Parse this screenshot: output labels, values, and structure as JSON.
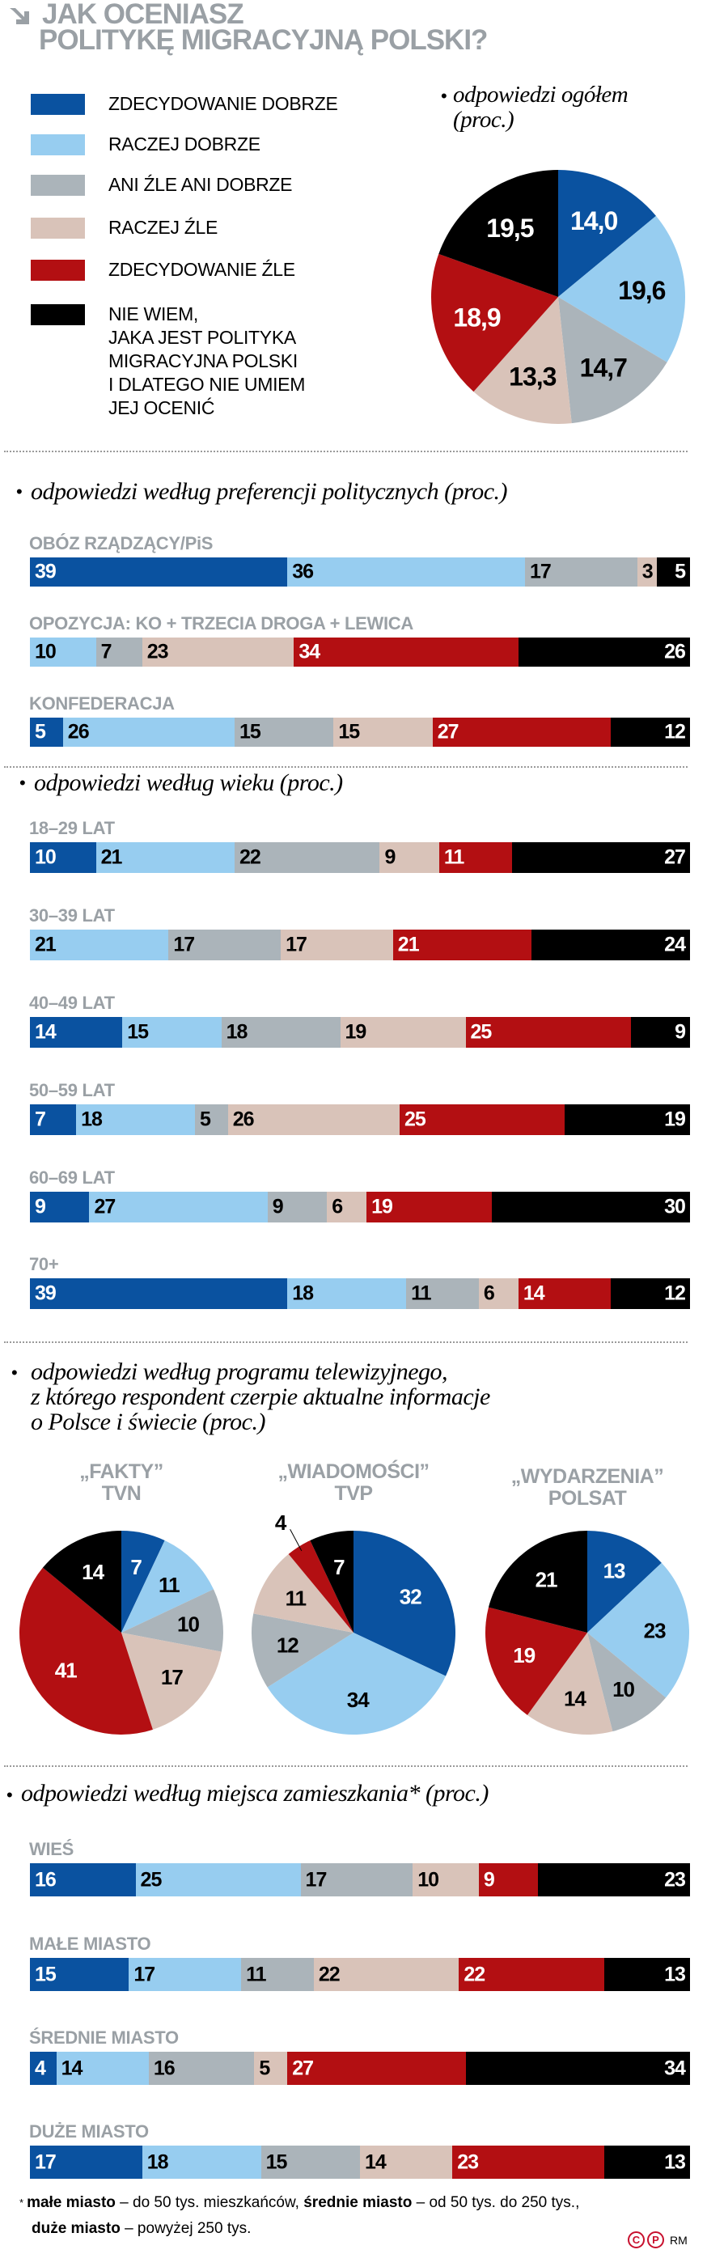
{
  "title": {
    "line1": "JAK OCENIASZ",
    "line2": "POLITYKĘ MIGRACYJNĄ POLSKI?"
  },
  "colors": {
    "zdecydowanie_dobrze": "#0a52a0",
    "raczej_dobrze": "#97cdf0",
    "ani_zle_ani_dobrze": "#abb4ba",
    "raczej_zle": "#d9c3b9",
    "zdecydowanie_zle": "#b30f12",
    "nie_wiem": "#000000",
    "heading_gray": "#9aa0a5"
  },
  "legend": [
    {
      "label": "ZDECYDOWANIE DOBRZE"
    },
    {
      "label": "RACZEJ DOBRZE"
    },
    {
      "label": "ANI ŹLE ANI DOBRZE"
    },
    {
      "label": "RACZEJ ŹLE"
    },
    {
      "label": "ZDECYDOWANIE ŹLE"
    },
    {
      "label": "NIE WIEM,\nJAKA JEST POLITYKA\nMIGRACYJNA POLSKI\nI DLATEGO NIE UMIEM\nJEJ OCENIĆ"
    }
  ],
  "chart_data": [
    {
      "type": "pie",
      "title": "odpowiedzi ogółem\n(proc.)",
      "values": [
        14.0,
        19.6,
        14.7,
        13.3,
        18.9,
        19.5
      ],
      "labels": [
        "14,0",
        "19,6",
        "14,7",
        "13,3",
        "18,9",
        "19,5"
      ]
    },
    {
      "type": "bar",
      "stacked": true,
      "orientation": "horizontal",
      "title": "odpowiedzi według preferencji politycznych (proc.)",
      "groups": [
        {
          "label": "OBÓZ RZĄDZĄCY/PiS",
          "values": [
            39,
            36,
            17,
            3,
            null,
            5
          ]
        },
        {
          "label": "OPOZYCJA: KO + TRZECIA DROGA + LEWICA",
          "values": [
            null,
            10,
            7,
            23,
            34,
            26
          ]
        },
        {
          "label": "KONFEDERACJA",
          "values": [
            5,
            26,
            15,
            15,
            27,
            12
          ]
        }
      ]
    },
    {
      "type": "bar",
      "stacked": true,
      "orientation": "horizontal",
      "title": "odpowiedzi według wieku (proc.)",
      "groups": [
        {
          "label": "18–29 LAT",
          "values": [
            10,
            21,
            22,
            9,
            11,
            27
          ]
        },
        {
          "label": "30–39 LAT",
          "values": [
            null,
            21,
            17,
            17,
            21,
            24
          ]
        },
        {
          "label": "40–49 LAT",
          "values": [
            14,
            15,
            18,
            19,
            25,
            9
          ]
        },
        {
          "label": "50–59 LAT",
          "values": [
            7,
            18,
            5,
            26,
            25,
            19
          ]
        },
        {
          "label": "60–69 LAT",
          "values": [
            9,
            27,
            9,
            6,
            19,
            30
          ]
        },
        {
          "label": "70+",
          "values": [
            39,
            18,
            11,
            6,
            14,
            12
          ]
        }
      ]
    },
    {
      "type": "pie",
      "title": "odpowiedzi według programu telewizyjnego,\nz którego respondent czerpie aktualne informacje\no Polsce i świecie (proc.)",
      "pies": [
        {
          "label": "„FAKTY”\nTVN",
          "values": [
            7,
            11,
            10,
            17,
            41,
            14
          ]
        },
        {
          "label": "„WIADOMOŚCI”\nTVP",
          "values": [
            32,
            34,
            12,
            11,
            4,
            7
          ]
        },
        {
          "label": "„WYDARZENIA”\nPOLSAT",
          "values": [
            13,
            23,
            10,
            14,
            19,
            21
          ]
        }
      ]
    },
    {
      "type": "bar",
      "stacked": true,
      "orientation": "horizontal",
      "title": "odpowiedzi według miejsca zamieszkania* (proc.)",
      "groups": [
        {
          "label": "WIEŚ",
          "values": [
            16,
            25,
            17,
            10,
            9,
            23
          ]
        },
        {
          "label": "MAŁE MIASTO",
          "values": [
            15,
            17,
            11,
            22,
            22,
            13
          ]
        },
        {
          "label": "ŚREDNIE MIASTO",
          "values": [
            4,
            14,
            16,
            5,
            27,
            34
          ]
        },
        {
          "label": "DUŻE MIASTO",
          "values": [
            17,
            18,
            15,
            14,
            23,
            13
          ]
        }
      ]
    }
  ],
  "footnote": {
    "asterisk": "*",
    "t1_bold": "małe miasto",
    "t1": " – do 50 tys. mieszkańców, ",
    "t2_bold": "średnie miasto",
    "t2": " – od 50 tys. do 250 tys.,",
    "t3_bold": "duże miasto",
    "t3": " – powyżej 250 tys."
  },
  "credit": {
    "copyright": "C",
    "phonogram": "P",
    "author": "RM"
  }
}
